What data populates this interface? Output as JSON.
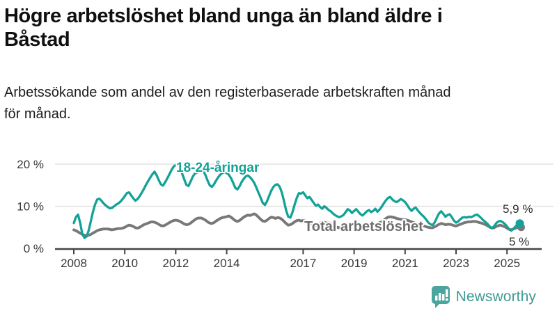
{
  "header": {
    "title": "Högre arbetslöshet bland unga än bland äldre i Båstad",
    "title_lines": [
      "Högre arbetslöshet bland unga än bland äldre i",
      "Båstad"
    ],
    "subtitle": "Arbetssökande som andel av den registerbaserade arbetskraften månad för månad.",
    "subtitle_lines": [
      "Arbetssökande som andel av den registerbaserade arbetskraften månad",
      "för månad."
    ]
  },
  "chart_data": {
    "type": "line",
    "unit": "%",
    "frequency": "monthly",
    "x_start": "2008-01",
    "x_end": "2025-07",
    "grid": "horizontal",
    "ylim": [
      0,
      22
    ],
    "x_ticks": [
      "2008",
      "2010",
      "2012",
      "2014",
      "2017",
      "2019",
      "2021",
      "2023",
      "2025"
    ],
    "y_ticks": [
      {
        "value": 0,
        "label": "0 %"
      },
      {
        "value": 10,
        "label": "10 %"
      },
      {
        "value": 20,
        "label": "20 %"
      }
    ],
    "series": [
      {
        "name": "Total arbetslöshet",
        "color": "#787878",
        "end_label": "5 %",
        "end_value": 5.0,
        "values": [
          4.4,
          4.2,
          3.9,
          3.6,
          3.3,
          3.1,
          3.0,
          3.1,
          3.3,
          3.6,
          3.9,
          4.2,
          4.4,
          4.5,
          4.6,
          4.6,
          4.6,
          4.5,
          4.4,
          4.5,
          4.6,
          4.7,
          4.7,
          4.8,
          5.0,
          5.3,
          5.5,
          5.4,
          5.2,
          4.9,
          4.8,
          5.0,
          5.3,
          5.6,
          5.8,
          6.0,
          6.2,
          6.3,
          6.2,
          6.0,
          5.7,
          5.4,
          5.3,
          5.5,
          5.8,
          6.1,
          6.4,
          6.6,
          6.7,
          6.6,
          6.4,
          6.1,
          5.8,
          5.6,
          5.7,
          6.0,
          6.4,
          6.8,
          7.1,
          7.2,
          7.2,
          7.0,
          6.7,
          6.3,
          6.0,
          5.9,
          6.1,
          6.5,
          6.8,
          7.1,
          7.3,
          7.4,
          7.5,
          7.7,
          7.4,
          7.0,
          6.6,
          6.4,
          6.6,
          7.0,
          7.4,
          7.7,
          7.9,
          7.8,
          8.0,
          8.2,
          7.9,
          7.4,
          6.9,
          6.5,
          6.4,
          6.7,
          7.1,
          7.4,
          7.3,
          7.1,
          7.3,
          7.2,
          6.9,
          6.4,
          5.9,
          5.5,
          5.6,
          5.9,
          6.3,
          6.6,
          6.7,
          6.5,
          6.6,
          6.5,
          6.2,
          5.8,
          5.5,
          5.3,
          5.4,
          5.7,
          6.0,
          6.2,
          6.2,
          6.0,
          6.0,
          5.9,
          5.6,
          5.3,
          5.0,
          4.9,
          5.0,
          5.3,
          5.5,
          5.7,
          5.7,
          5.6,
          5.7,
          5.8,
          5.6,
          5.4,
          5.2,
          5.2,
          5.4,
          5.6,
          5.7,
          5.8,
          5.8,
          5.9,
          6.1,
          6.3,
          6.7,
          7.1,
          7.4,
          7.5,
          7.4,
          7.3,
          7.1,
          7.0,
          6.9,
          6.8,
          6.8,
          6.7,
          6.5,
          6.3,
          6.1,
          5.9,
          5.8,
          5.7,
          5.5,
          5.3,
          5.1,
          5.0,
          4.9,
          4.9,
          5.1,
          5.4,
          5.7,
          5.9,
          5.8,
          5.6,
          5.7,
          5.7,
          5.6,
          5.4,
          5.3,
          5.5,
          5.7,
          5.9,
          6.1,
          6.2,
          6.3,
          6.3,
          6.4,
          6.4,
          6.3,
          6.1,
          6.0,
          5.8,
          5.6,
          5.3,
          5.0,
          4.8,
          4.9,
          5.2,
          5.4,
          5.5,
          5.3,
          5.1,
          4.8,
          4.5,
          4.4,
          4.6,
          4.8,
          4.9,
          5.0
        ]
      },
      {
        "name": "18-24-åringar",
        "color": "#12A296",
        "end_label": "5,9 %",
        "end_value": 5.9,
        "values": [
          6.0,
          7.4,
          8.0,
          6.0,
          3.4,
          2.5,
          2.8,
          4.2,
          6.4,
          8.6,
          10.4,
          11.6,
          11.8,
          11.3,
          10.7,
          10.2,
          9.8,
          9.5,
          9.6,
          10.0,
          10.4,
          10.7,
          11.1,
          11.7,
          12.4,
          13.1,
          13.3,
          12.6,
          11.9,
          11.3,
          11.7,
          12.4,
          13.2,
          14.1,
          15.1,
          16.0,
          16.8,
          17.6,
          18.2,
          17.4,
          16.2,
          15.2,
          14.9,
          15.7,
          16.6,
          17.6,
          18.6,
          19.4,
          19.8,
          20.0,
          19.2,
          17.8,
          16.4,
          15.1,
          14.8,
          15.9,
          17.0,
          17.8,
          18.0,
          18.3,
          18.8,
          18.4,
          17.4,
          16.1,
          15.0,
          14.6,
          15.2,
          16.1,
          16.9,
          17.5,
          17.9,
          18.1,
          17.9,
          17.5,
          16.7,
          15.6,
          14.4,
          14.0,
          14.7,
          15.7,
          16.5,
          17.1,
          17.3,
          16.9,
          16.3,
          15.5,
          14.4,
          13.2,
          12.0,
          10.8,
          10.3,
          11.2,
          12.5,
          13.7,
          14.6,
          15.1,
          15.2,
          14.6,
          13.2,
          11.2,
          9.0,
          7.5,
          7.3,
          8.6,
          10.4,
          12.0,
          13.1,
          13.0,
          13.3,
          12.6,
          11.9,
          12.2,
          11.5,
          10.8,
          10.1,
          10.4,
          9.8,
          9.4,
          10.0,
          9.6,
          9.1,
          8.8,
          8.3,
          7.9,
          7.6,
          7.4,
          7.6,
          7.9,
          8.6,
          9.3,
          9.0,
          8.4,
          8.9,
          9.3,
          8.7,
          8.1,
          7.8,
          8.3,
          8.8,
          9.1,
          8.6,
          8.9,
          9.4,
          8.7,
          9.2,
          9.9,
          10.7,
          11.4,
          12.0,
          12.2,
          11.6,
          11.2,
          11.0,
          11.3,
          11.7,
          11.4,
          11.0,
          10.3,
          9.5,
          8.9,
          9.4,
          9.7,
          9.0,
          8.4,
          7.9,
          7.4,
          6.8,
          6.1,
          5.7,
          5.5,
          6.2,
          7.3,
          8.3,
          8.8,
          8.2,
          7.5,
          7.9,
          8.1,
          7.4,
          6.6,
          6.1,
          6.4,
          6.9,
          7.3,
          7.4,
          7.3,
          7.5,
          7.4,
          7.6,
          7.9,
          8.0,
          7.6,
          7.1,
          6.6,
          6.2,
          5.7,
          5.1,
          4.8,
          5.3,
          6.0,
          6.4,
          6.5,
          6.2,
          5.8,
          5.2,
          4.5,
          4.2,
          4.6,
          5.2,
          5.6,
          5.9
        ]
      }
    ]
  },
  "footer": {
    "brand": "Newsworthy"
  },
  "colors": {
    "accent_teal": "#12A296",
    "line_gray": "#787878",
    "axis": "#444444",
    "grid": "#DCDCDC",
    "tick_text": "#383838",
    "end_label_text": "#2e2e2e",
    "brand_teal": "#3E9B94",
    "logo_fill": "#4BA49E"
  }
}
